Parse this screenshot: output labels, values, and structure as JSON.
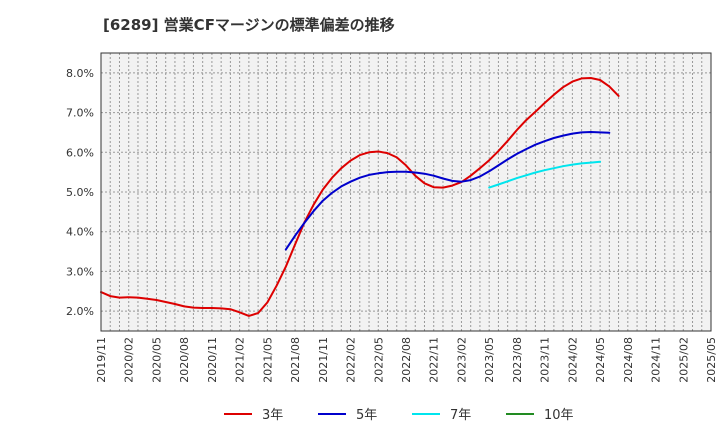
{
  "chart_data": {
    "type": "line",
    "title": "[6289]  営業CFマージンの標準偏差の推移",
    "xlabel": "",
    "ylabel": "",
    "x_ticks": [
      "2019/11",
      "2020/02",
      "2020/05",
      "2020/08",
      "2020/11",
      "2021/02",
      "2021/05",
      "2021/08",
      "2021/11",
      "2022/02",
      "2022/05",
      "2022/08",
      "2022/11",
      "2023/02",
      "2023/05",
      "2023/08",
      "2023/11",
      "2024/02",
      "2024/05",
      "2024/08",
      "2024/11",
      "2025/02",
      "2025/05"
    ],
    "y_ticks": [
      "2.0%",
      "3.0%",
      "4.0%",
      "5.0%",
      "6.0%",
      "7.0%",
      "8.0%"
    ],
    "ylim": [
      1.5,
      8.5
    ],
    "grid": true,
    "legend_position": "bottom",
    "series": [
      {
        "name": "3年",
        "color": "#dd0000",
        "points": [
          [
            "2019/11",
            2.48
          ],
          [
            "2019/12",
            2.38
          ],
          [
            "2020/01",
            2.34
          ],
          [
            "2020/02",
            2.35
          ],
          [
            "2020/03",
            2.34
          ],
          [
            "2020/04",
            2.31
          ],
          [
            "2020/05",
            2.28
          ],
          [
            "2020/06",
            2.23
          ],
          [
            "2020/07",
            2.18
          ],
          [
            "2020/08",
            2.12
          ],
          [
            "2020/09",
            2.09
          ],
          [
            "2020/10",
            2.08
          ],
          [
            "2020/11",
            2.08
          ],
          [
            "2020/12",
            2.07
          ],
          [
            "2021/01",
            2.05
          ],
          [
            "2021/02",
            1.97
          ],
          [
            "2021/03",
            1.88
          ],
          [
            "2021/04",
            1.95
          ],
          [
            "2021/05",
            2.22
          ],
          [
            "2021/06",
            2.64
          ],
          [
            "2021/07",
            3.12
          ],
          [
            "2021/08",
            3.68
          ],
          [
            "2021/09",
            4.23
          ],
          [
            "2021/10",
            4.68
          ],
          [
            "2021/11",
            5.06
          ],
          [
            "2021/12",
            5.36
          ],
          [
            "2022/01",
            5.6
          ],
          [
            "2022/02",
            5.79
          ],
          [
            "2022/03",
            5.93
          ],
          [
            "2022/04",
            6.0
          ],
          [
            "2022/05",
            6.02
          ],
          [
            "2022/06",
            5.98
          ],
          [
            "2022/07",
            5.87
          ],
          [
            "2022/08",
            5.67
          ],
          [
            "2022/09",
            5.41
          ],
          [
            "2022/10",
            5.22
          ],
          [
            "2022/11",
            5.12
          ],
          [
            "2022/12",
            5.11
          ],
          [
            "2023/01",
            5.16
          ],
          [
            "2023/02",
            5.25
          ],
          [
            "2023/03",
            5.41
          ],
          [
            "2023/04",
            5.6
          ],
          [
            "2023/05",
            5.8
          ],
          [
            "2023/06",
            6.03
          ],
          [
            "2023/07",
            6.29
          ],
          [
            "2023/08",
            6.56
          ],
          [
            "2023/09",
            6.81
          ],
          [
            "2023/10",
            7.02
          ],
          [
            "2023/11",
            7.24
          ],
          [
            "2023/12",
            7.45
          ],
          [
            "2024/01",
            7.64
          ],
          [
            "2024/02",
            7.78
          ],
          [
            "2024/03",
            7.86
          ],
          [
            "2024/04",
            7.87
          ],
          [
            "2024/05",
            7.82
          ],
          [
            "2024/06",
            7.66
          ],
          [
            "2024/07",
            7.42
          ]
        ]
      },
      {
        "name": "5年",
        "color": "#0000cc",
        "points": [
          [
            "2021/07",
            3.55
          ],
          [
            "2021/08",
            3.9
          ],
          [
            "2021/09",
            4.22
          ],
          [
            "2021/10",
            4.52
          ],
          [
            "2021/11",
            4.78
          ],
          [
            "2021/12",
            4.98
          ],
          [
            "2022/01",
            5.14
          ],
          [
            "2022/02",
            5.26
          ],
          [
            "2022/03",
            5.36
          ],
          [
            "2022/04",
            5.43
          ],
          [
            "2022/05",
            5.47
          ],
          [
            "2022/06",
            5.5
          ],
          [
            "2022/07",
            5.51
          ],
          [
            "2022/08",
            5.51
          ],
          [
            "2022/09",
            5.49
          ],
          [
            "2022/10",
            5.46
          ],
          [
            "2022/11",
            5.41
          ],
          [
            "2022/12",
            5.34
          ],
          [
            "2023/01",
            5.28
          ],
          [
            "2023/02",
            5.26
          ],
          [
            "2023/03",
            5.3
          ],
          [
            "2023/04",
            5.39
          ],
          [
            "2023/05",
            5.52
          ],
          [
            "2023/06",
            5.67
          ],
          [
            "2023/07",
            5.82
          ],
          [
            "2023/08",
            5.96
          ],
          [
            "2023/09",
            6.08
          ],
          [
            "2023/10",
            6.19
          ],
          [
            "2023/11",
            6.28
          ],
          [
            "2023/12",
            6.36
          ],
          [
            "2024/01",
            6.42
          ],
          [
            "2024/02",
            6.47
          ],
          [
            "2024/03",
            6.5
          ],
          [
            "2024/04",
            6.51
          ],
          [
            "2024/05",
            6.5
          ],
          [
            "2024/06",
            6.49
          ]
        ]
      },
      {
        "name": "7年",
        "color": "#00e5ee",
        "points": [
          [
            "2023/05",
            5.11
          ],
          [
            "2023/06",
            5.19
          ],
          [
            "2023/07",
            5.27
          ],
          [
            "2023/08",
            5.35
          ],
          [
            "2023/09",
            5.42
          ],
          [
            "2023/10",
            5.49
          ],
          [
            "2023/11",
            5.55
          ],
          [
            "2023/12",
            5.6
          ],
          [
            "2024/01",
            5.65
          ],
          [
            "2024/02",
            5.69
          ],
          [
            "2024/03",
            5.72
          ],
          [
            "2024/04",
            5.74
          ],
          [
            "2024/05",
            5.76
          ]
        ]
      },
      {
        "name": "10年",
        "color": "#228b22",
        "points": []
      }
    ]
  }
}
